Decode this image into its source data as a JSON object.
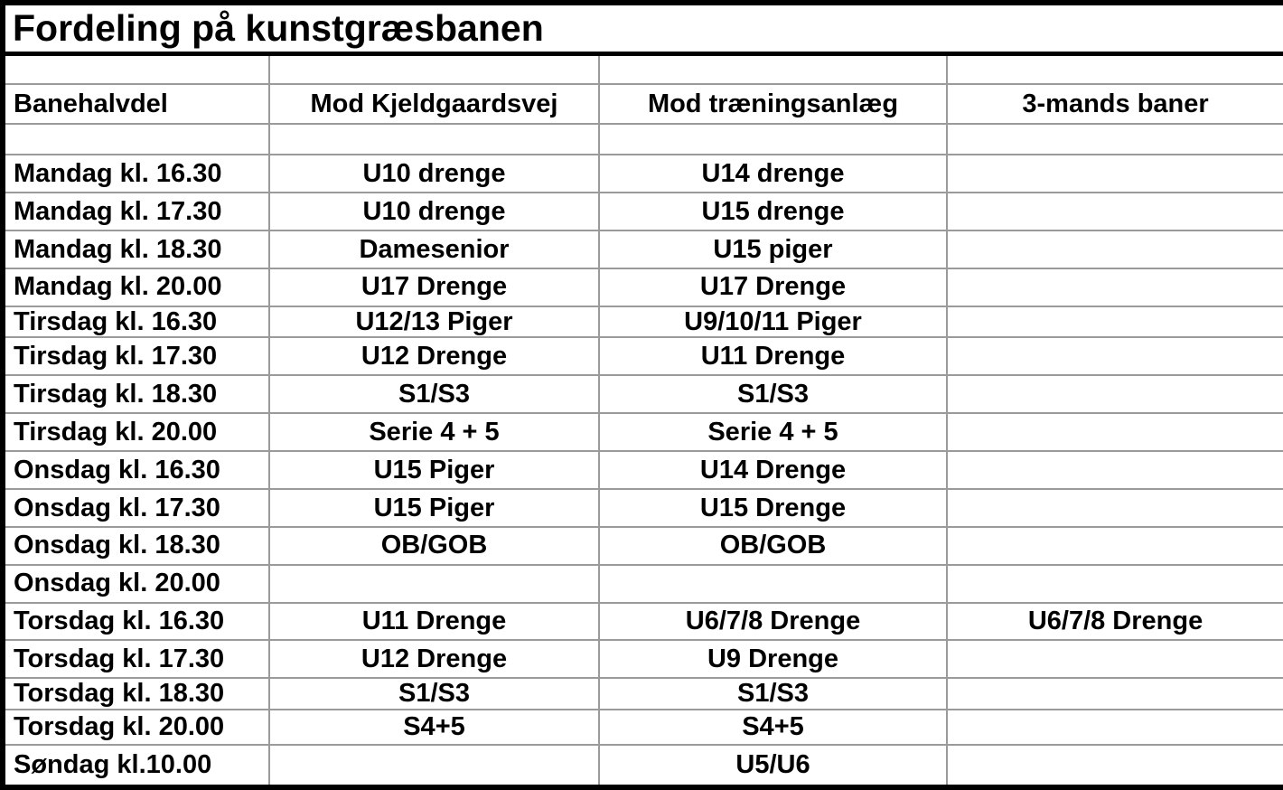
{
  "title": "Fordeling på kunstgræsbanen",
  "table": {
    "headers": [
      "Banehalvdel",
      "Mod Kjeldgaardsvej",
      "Mod træningsanlæg",
      "3-mands baner"
    ],
    "rows": [
      {
        "cells": [
          "Mandag kl. 16.30",
          "U10 drenge",
          "U14 drenge",
          ""
        ]
      },
      {
        "cells": [
          "Mandag kl. 17.30",
          "U10 drenge",
          "U15 drenge",
          ""
        ]
      },
      {
        "cells": [
          "Mandag kl. 18.30",
          "Damesenior",
          "U15 piger",
          ""
        ]
      },
      {
        "cells": [
          "Mandag kl. 20.00",
          "U17 Drenge",
          "U17 Drenge",
          ""
        ]
      },
      {
        "cells": [
          "Tirsdag kl. 16.30",
          "U12/13 Piger",
          "U9/10/11 Piger",
          ""
        ]
      },
      {
        "cells": [
          "Tirsdag kl. 17.30",
          "U12 Drenge",
          "U11 Drenge",
          ""
        ]
      },
      {
        "cells": [
          "Tirsdag kl. 18.30",
          "S1/S3",
          "S1/S3",
          ""
        ]
      },
      {
        "cells": [
          "Tirsdag kl. 20.00",
          "Serie 4 + 5",
          "Serie 4 + 5",
          ""
        ]
      },
      {
        "cells": [
          "Onsdag kl. 16.30",
          "U15 Piger",
          "U14 Drenge",
          ""
        ]
      },
      {
        "cells": [
          "Onsdag kl. 17.30",
          "U15 Piger",
          "U15 Drenge",
          ""
        ]
      },
      {
        "cells": [
          "Onsdag kl. 18.30",
          "OB/GOB",
          "OB/GOB",
          ""
        ]
      },
      {
        "cells": [
          "Onsdag kl. 20.00",
          "",
          "",
          ""
        ]
      },
      {
        "cells": [
          "Torsdag kl. 16.30",
          "U11 Drenge",
          "U6/7/8 Drenge",
          "U6/7/8 Drenge"
        ]
      },
      {
        "cells": [
          "Torsdag kl. 17.30",
          "U12 Drenge",
          "U9 Drenge",
          ""
        ]
      },
      {
        "cells": [
          "Torsdag kl. 18.30",
          "S1/S3",
          "S1/S3",
          ""
        ]
      },
      {
        "cells": [
          "Torsdag kl. 20.00",
          "S4+5",
          "S4+5",
          ""
        ]
      },
      {
        "cells": [
          "Søndag kl.10.00",
          "",
          "U5/U6",
          ""
        ]
      }
    ]
  },
  "colors": {
    "text": "#000000",
    "outer_border": "#000000",
    "grid_line": "#9a9a9a",
    "background": "#ffffff"
  }
}
